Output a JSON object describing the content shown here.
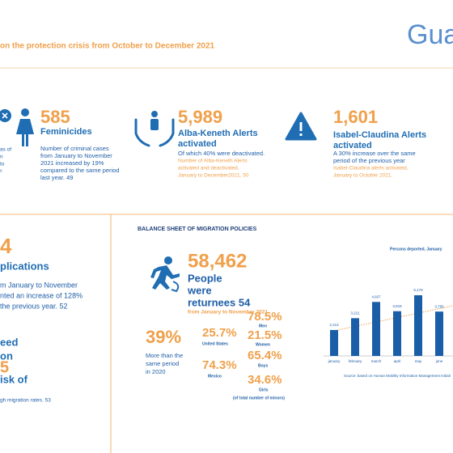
{
  "header": {
    "subtitle": "on the protection crisis from October to December 2021",
    "title": "Gua"
  },
  "left_fragment": {
    "lines": [
      "as of",
      "n",
      "to",
      "s"
    ]
  },
  "feminicides": {
    "value": "585",
    "label": "Feminicides",
    "text": [
      "Number of criminal cases",
      "from January to November",
      "2021 increased by 19%",
      "compared to the same period",
      "last year. 49"
    ]
  },
  "alba_keneth": {
    "value": "5,989",
    "label": [
      "Alba-Keneth Alerts",
      "activated"
    ],
    "text": [
      "Of which 40% were deactivated."
    ],
    "note": [
      "Number of Alba-Keneth Alerts",
      "activated and deactivated,",
      "January to December2021. 50"
    ]
  },
  "isabel_claudina": {
    "value": "1,601",
    "label": [
      "Isabel-Claudina Alerts",
      "activated"
    ],
    "text": [
      "A 30% increase over the same",
      "period of the previous year"
    ],
    "note": [
      "Isabel-Claudina alerts activated,",
      "January to October 2021."
    ]
  },
  "left_bottom": {
    "value": "4",
    "label": "plications",
    "text": [
      "m January to November",
      "nted an increase of 128%",
      "the previous year. 52"
    ],
    "label2": [
      "eed",
      "on"
    ],
    "value2": "5",
    "label3": "isk of",
    "text2": "gh migration rates. 53"
  },
  "migration": {
    "title": "BALANCE SHEET OF MIGRATION POLICIES",
    "returnees": {
      "value": "58,462",
      "label": [
        "People",
        "were",
        "returnees 54"
      ],
      "note": "from January to November 2021"
    },
    "increase": {
      "value": "39%",
      "text": [
        "More than the",
        "same period",
        "in 2020"
      ]
    },
    "countries": [
      {
        "value": "25.7%",
        "label": "United States"
      },
      {
        "value": "74.3%",
        "label": "Mexico"
      }
    ],
    "groups": [
      {
        "value": "78.5%",
        "label": "Men"
      },
      {
        "value": "21.5%",
        "label": "Women"
      },
      {
        "value": "65.4%",
        "label": "Boys"
      },
      {
        "value": "34.6%",
        "label": "Girls"
      }
    ],
    "groups_note": "(of total number of minors)"
  },
  "chart_data": {
    "type": "bar",
    "title": "Persons deported, January",
    "categories": [
      "january",
      "february",
      "march",
      "april",
      "may",
      "june"
    ],
    "values": [
      2213,
      3221,
      4607,
      3818,
      5179,
      3785
    ],
    "value_labels": [
      "2,213",
      "3,221",
      "4,607",
      "3,818",
      "5,179",
      "3,785"
    ],
    "color": "#1a5ea8",
    "source": "Source: based on Human Mobility Information Management Initiati"
  }
}
